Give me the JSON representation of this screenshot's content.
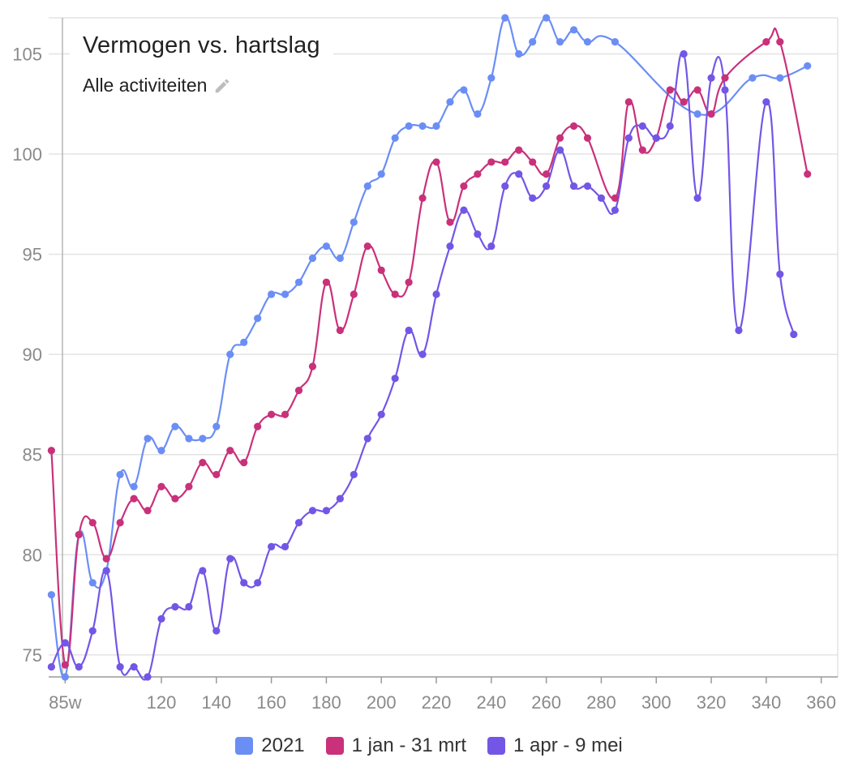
{
  "chart_data": {
    "type": "line",
    "title": "Vermogen vs. hartslag",
    "subtitle": "Alle activiteiten",
    "xlabel": "",
    "ylabel": "",
    "xlim": [
      79,
      366
    ],
    "ylim": [
      73.9,
      106.8
    ],
    "x_ticks": [
      {
        "value": 85,
        "label": "85w"
      },
      {
        "value": 120,
        "label": "120"
      },
      {
        "value": 140,
        "label": "140"
      },
      {
        "value": 160,
        "label": "160"
      },
      {
        "value": 180,
        "label": "180"
      },
      {
        "value": 200,
        "label": "200"
      },
      {
        "value": 220,
        "label": "220"
      },
      {
        "value": 240,
        "label": "240"
      },
      {
        "value": 260,
        "label": "260"
      },
      {
        "value": 280,
        "label": "280"
      },
      {
        "value": 300,
        "label": "300"
      },
      {
        "value": 320,
        "label": "320"
      },
      {
        "value": 340,
        "label": "340"
      },
      {
        "value": 360,
        "label": "360"
      }
    ],
    "y_ticks": [
      75,
      80,
      85,
      90,
      95,
      100,
      105
    ],
    "grid": true,
    "legend_position": "bottom",
    "series": [
      {
        "name": "2021",
        "color": "#6B8EF5",
        "x": [
          80,
          85,
          90,
          95,
          100,
          105,
          110,
          115,
          120,
          125,
          130,
          135,
          140,
          145,
          150,
          155,
          160,
          165,
          170,
          175,
          180,
          185,
          190,
          195,
          200,
          205,
          210,
          215,
          220,
          225,
          230,
          235,
          240,
          245,
          250,
          255,
          260,
          265,
          270,
          275,
          285,
          315,
          335,
          345,
          355
        ],
        "y": [
          78.0,
          73.9,
          81.0,
          78.6,
          79.2,
          84.0,
          83.4,
          85.8,
          85.2,
          86.4,
          85.8,
          85.8,
          86.4,
          90.0,
          90.6,
          91.8,
          93.0,
          93.0,
          93.6,
          94.8,
          95.4,
          94.8,
          96.6,
          98.4,
          99.0,
          100.8,
          101.4,
          101.4,
          101.4,
          102.6,
          103.2,
          102.0,
          103.8,
          106.8,
          105.0,
          105.6,
          106.8,
          105.6,
          106.2,
          105.6,
          105.6,
          102.0,
          103.8,
          103.8,
          104.4
        ]
      },
      {
        "name": "1 jan - 31 mrt",
        "color": "#C9317A",
        "x": [
          80,
          85,
          90,
          95,
          100,
          105,
          110,
          115,
          120,
          125,
          130,
          135,
          140,
          145,
          150,
          155,
          160,
          165,
          170,
          175,
          180,
          185,
          190,
          195,
          200,
          205,
          210,
          215,
          220,
          225,
          230,
          235,
          240,
          245,
          250,
          255,
          260,
          265,
          270,
          275,
          285,
          290,
          295,
          300,
          305,
          310,
          315,
          320,
          325,
          340,
          345,
          355
        ],
        "y": [
          85.2,
          74.5,
          81.0,
          81.6,
          79.8,
          81.6,
          82.8,
          82.2,
          83.4,
          82.8,
          83.4,
          84.6,
          84.0,
          85.2,
          84.6,
          86.4,
          87.0,
          87.0,
          88.2,
          89.4,
          93.6,
          91.2,
          93.0,
          95.4,
          94.2,
          93.0,
          93.6,
          97.8,
          99.6,
          96.6,
          98.4,
          99.0,
          99.6,
          99.6,
          100.2,
          99.6,
          99.0,
          100.8,
          101.4,
          100.8,
          97.8,
          102.6,
          100.2,
          100.8,
          103.2,
          102.6,
          103.2,
          102.0,
          103.8,
          105.6,
          105.6,
          99.0
        ]
      },
      {
        "name": "1 apr - 9 mei",
        "color": "#7356E6",
        "x": [
          80,
          85,
          90,
          95,
          100,
          105,
          110,
          115,
          120,
          125,
          130,
          135,
          140,
          145,
          150,
          155,
          160,
          165,
          170,
          175,
          180,
          185,
          190,
          195,
          200,
          205,
          210,
          215,
          220,
          225,
          230,
          235,
          240,
          245,
          250,
          255,
          260,
          265,
          270,
          275,
          280,
          285,
          290,
          295,
          300,
          305,
          310,
          315,
          320,
          325,
          330,
          340,
          345,
          350
        ],
        "y": [
          74.4,
          75.6,
          74.4,
          76.2,
          79.2,
          74.4,
          74.4,
          73.9,
          76.8,
          77.4,
          77.4,
          79.2,
          76.2,
          79.8,
          78.6,
          78.6,
          80.4,
          80.4,
          81.6,
          82.2,
          82.2,
          82.8,
          84.0,
          85.8,
          87.0,
          88.8,
          91.2,
          90.0,
          93.0,
          95.4,
          97.2,
          96.0,
          95.4,
          98.4,
          99.0,
          97.8,
          98.4,
          100.2,
          98.4,
          98.4,
          97.8,
          97.2,
          100.8,
          101.4,
          100.8,
          101.4,
          105.0,
          97.8,
          103.8,
          103.2,
          91.2,
          102.6,
          94.0,
          91.0
        ]
      }
    ]
  }
}
